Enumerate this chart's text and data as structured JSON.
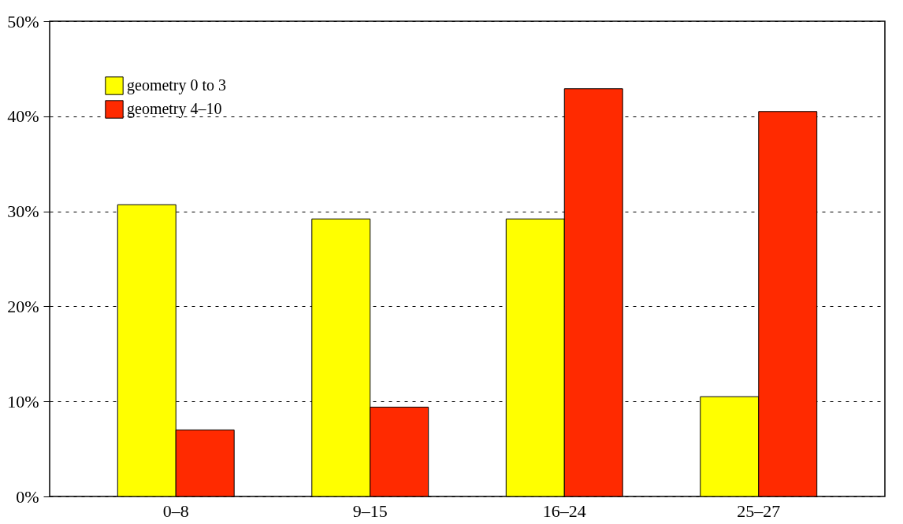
{
  "chart_data": {
    "type": "bar",
    "categories": [
      "0–8",
      "9–15",
      "16–24",
      "25–27"
    ],
    "series": [
      {
        "name": "geometry 0 to 3",
        "color": "#ffff00",
        "values": [
          30.7,
          29.2,
          29.2,
          10.5
        ]
      },
      {
        "name": "geometry 4–10",
        "color": "#ff2a00",
        "values": [
          7.0,
          9.4,
          42.9,
          40.5
        ]
      }
    ],
    "ylim": [
      0,
      50
    ],
    "yticks": [
      {
        "value": 0,
        "label": "0%"
      },
      {
        "value": 10,
        "label": "10%"
      },
      {
        "value": 20,
        "label": "20%"
      },
      {
        "value": 30,
        "label": "30%"
      },
      {
        "value": 40,
        "label": "40%"
      },
      {
        "value": 50,
        "label": "50%"
      }
    ],
    "grid": "y",
    "legend": "top left"
  }
}
